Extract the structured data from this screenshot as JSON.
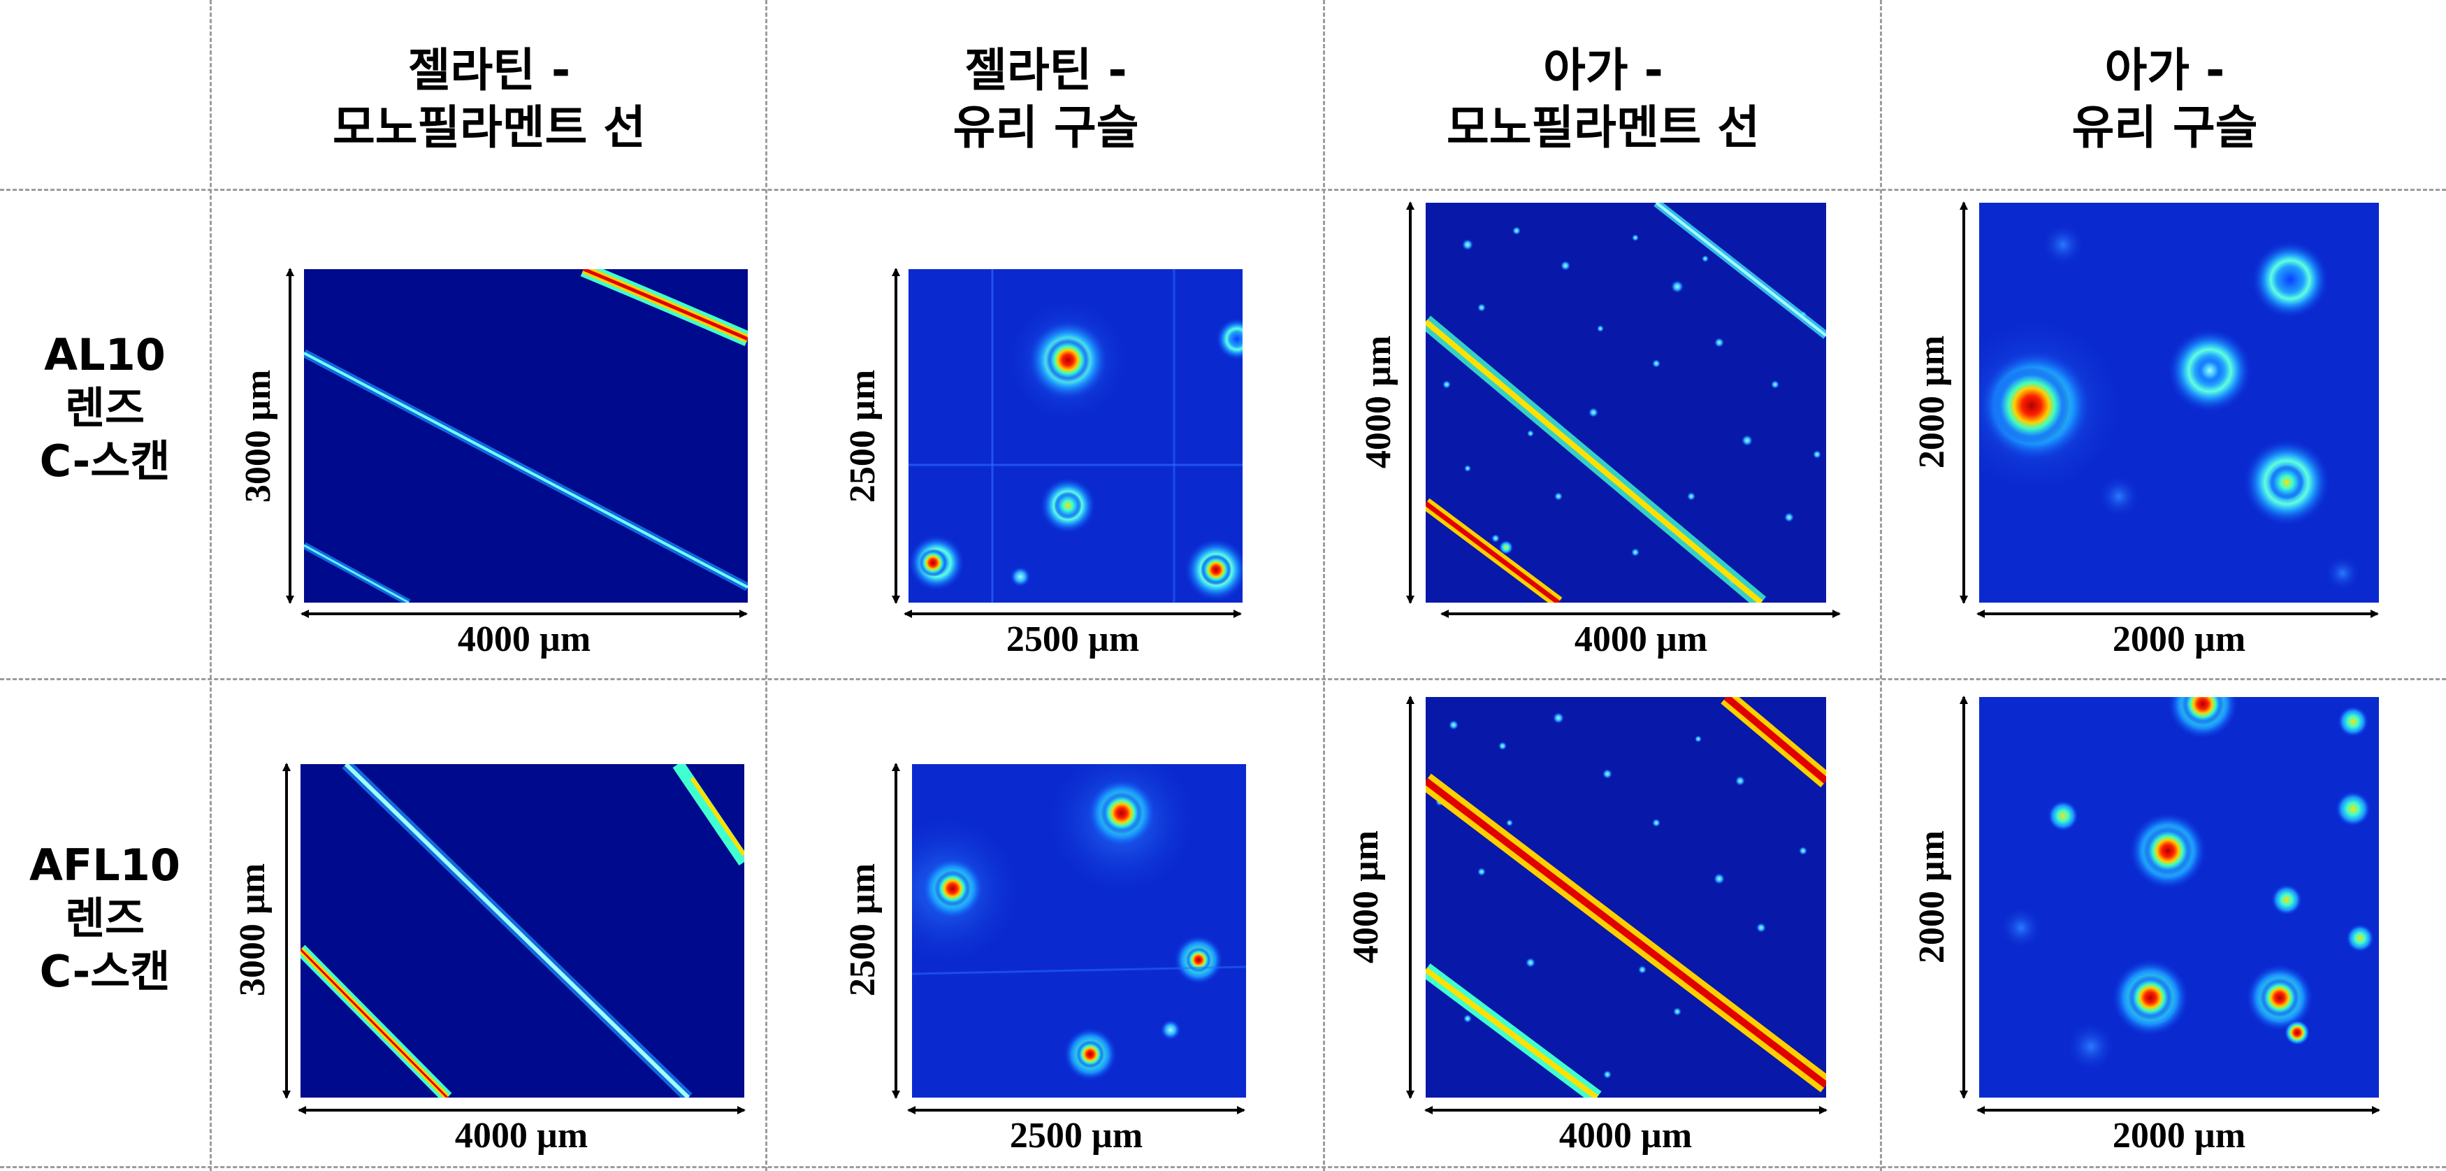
{
  "columns": [
    {
      "line1": "젤라틴 -",
      "line2": "모노필라멘트 선"
    },
    {
      "line1": "젤라틴 -",
      "line2": "유리 구슬"
    },
    {
      "line1": "아가 -",
      "line2": "모노필라멘트 선"
    },
    {
      "line1": "아가 -",
      "line2": "유리 구슬"
    }
  ],
  "rows": [
    {
      "line1": "AL10",
      "line2": "렌즈",
      "line3": "C-스캔"
    },
    {
      "line1": "AFL10",
      "line2": "렌즈",
      "line3": "C-스캔"
    }
  ],
  "panels": {
    "r1c1": {
      "xdim": "4000 µm",
      "ydim": "3000 µm"
    },
    "r1c2": {
      "xdim": "2500 µm",
      "ydim": "2500 µm"
    },
    "r1c3": {
      "xdim": "4000 µm",
      "ydim": "4000 µm"
    },
    "r1c4": {
      "xdim": "2000 µm",
      "ydim": "2000 µm"
    },
    "r2c1": {
      "xdim": "4000 µm",
      "ydim": "3000 µm"
    },
    "r2c2": {
      "xdim": "2500 µm",
      "ydim": "2500 µm"
    },
    "r2c3": {
      "xdim": "4000 µm",
      "ydim": "4000 µm"
    },
    "r2c4": {
      "xdim": "2000 µm",
      "ydim": "2000 µm"
    }
  },
  "colors": {
    "background": "#000a8c",
    "grid": "#9c9c9c"
  }
}
